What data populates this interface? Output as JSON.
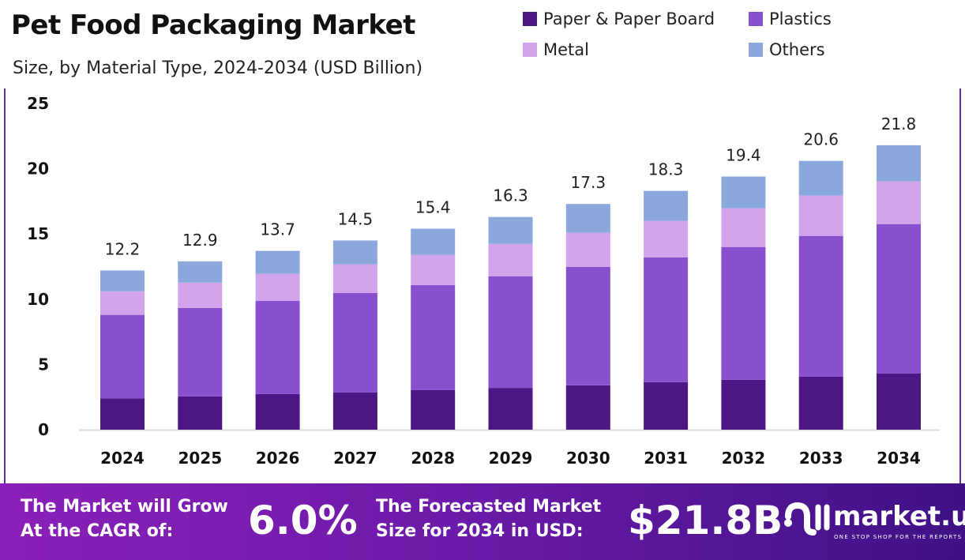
{
  "title": "Pet Food Packaging Market",
  "subtitle": "Size, by Material Type, 2024-2034 (USD Billion)",
  "chart_data": {
    "type": "bar",
    "stacked": true,
    "categories": [
      "2024",
      "2025",
      "2026",
      "2027",
      "2028",
      "2029",
      "2030",
      "2031",
      "2032",
      "2033",
      "2034"
    ],
    "series": [
      {
        "name": "Paper & Paper Board",
        "color": "#4e1685",
        "values": [
          2.4,
          2.55,
          2.73,
          2.85,
          3.03,
          3.2,
          3.4,
          3.64,
          3.82,
          4.06,
          4.3
        ]
      },
      {
        "name": "Plastics",
        "color": "#8a4fcf",
        "values": [
          6.4,
          6.78,
          7.15,
          7.63,
          8.06,
          8.56,
          9.08,
          9.56,
          10.18,
          10.79,
          11.46
        ]
      },
      {
        "name": "Metal",
        "color": "#d3a3ec",
        "values": [
          1.8,
          1.94,
          2.06,
          2.19,
          2.3,
          2.48,
          2.61,
          2.8,
          2.97,
          3.09,
          3.27
        ]
      },
      {
        "name": "Others",
        "color": "#8aa8dc",
        "values": [
          1.6,
          1.63,
          1.76,
          1.83,
          2.01,
          2.06,
          2.21,
          2.3,
          2.43,
          2.66,
          2.77
        ]
      }
    ],
    "totals": [
      "12.2",
      "12.9",
      "13.7",
      "14.5",
      "15.4",
      "16.3",
      "17.3",
      "18.3",
      "19.4",
      "20.6",
      "21.8"
    ],
    "yticks": [
      "0",
      "5",
      "10",
      "15",
      "20",
      "25"
    ],
    "ylim": [
      0,
      25
    ],
    "grid": false,
    "legend": "top-right"
  },
  "banner": {
    "cagr_label": "The Market will Grow At the CAGR of:",
    "cagr_value": "6.0%",
    "forecast_label": "The Forecasted Market Size for 2034 in USD:",
    "forecast_value": "$21.8B",
    "logo_name": "market.us",
    "logo_tagline": "ONE STOP SHOP FOR THE REPORTS"
  }
}
